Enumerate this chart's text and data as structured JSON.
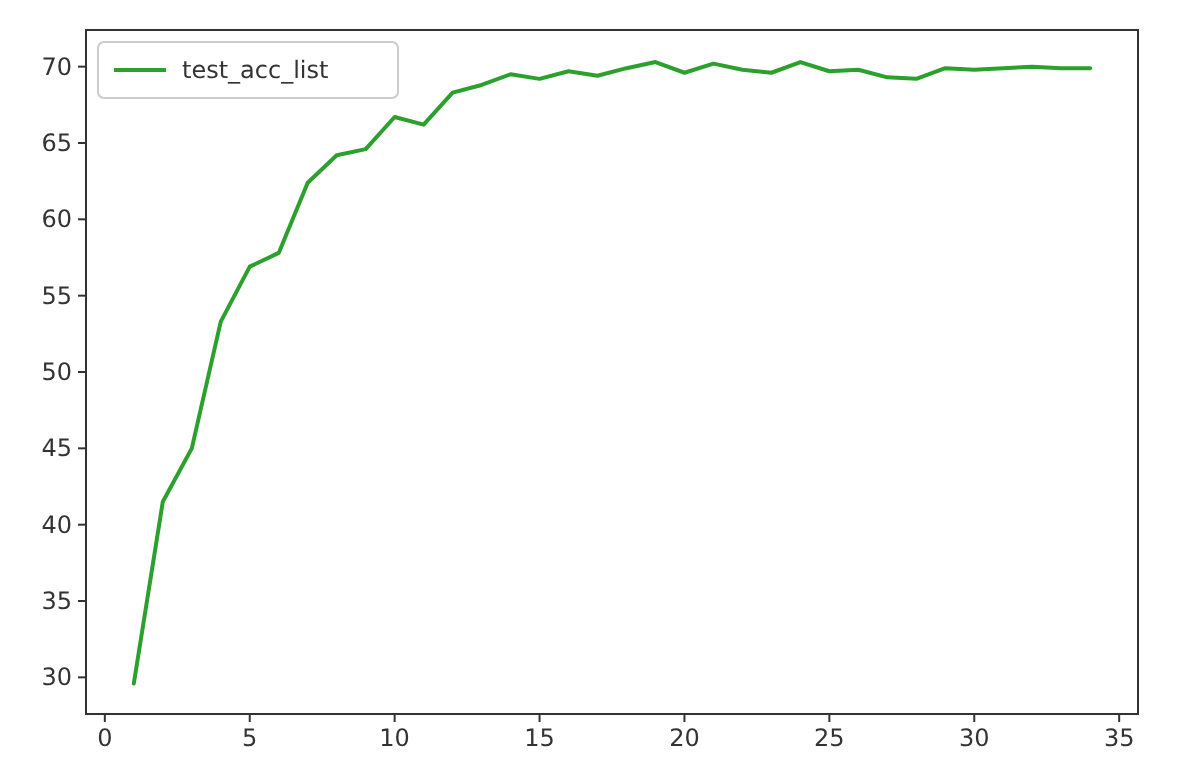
{
  "chart_data": {
    "type": "line",
    "x": [
      1,
      2,
      3,
      4,
      5,
      6,
      7,
      8,
      9,
      10,
      11,
      12,
      13,
      14,
      15,
      16,
      17,
      18,
      19,
      20,
      21,
      22,
      23,
      24,
      25,
      26,
      27,
      28,
      29,
      30,
      31,
      32,
      33,
      34
    ],
    "series": [
      {
        "name": "test_acc_list",
        "color": "#2ca02c",
        "values": [
          29.6,
          41.5,
          45,
          53.3,
          56.9,
          57.8,
          62.4,
          64.2,
          64.6,
          66.7,
          66.2,
          68.3,
          68.8,
          69.5,
          69.2,
          69.7,
          69.4,
          69.9,
          70.3,
          69.6,
          70.2,
          69.8,
          69.6,
          70.3,
          69.7,
          69.8,
          69.3,
          69.2,
          69.9,
          69.8,
          69.9,
          70.0,
          69.9,
          69.9
        ]
      }
    ],
    "xlim": [
      -0.65,
      35.65
    ],
    "xticks": [
      0,
      5,
      10,
      15,
      20,
      25,
      30,
      35
    ],
    "ylim": [
      27.6,
      72.4
    ],
    "yticks": [
      30,
      35,
      40,
      45,
      50,
      55,
      60,
      65,
      70
    ],
    "grid": false,
    "legend": "top left",
    "marker": "none",
    "line_style": "solid"
  }
}
